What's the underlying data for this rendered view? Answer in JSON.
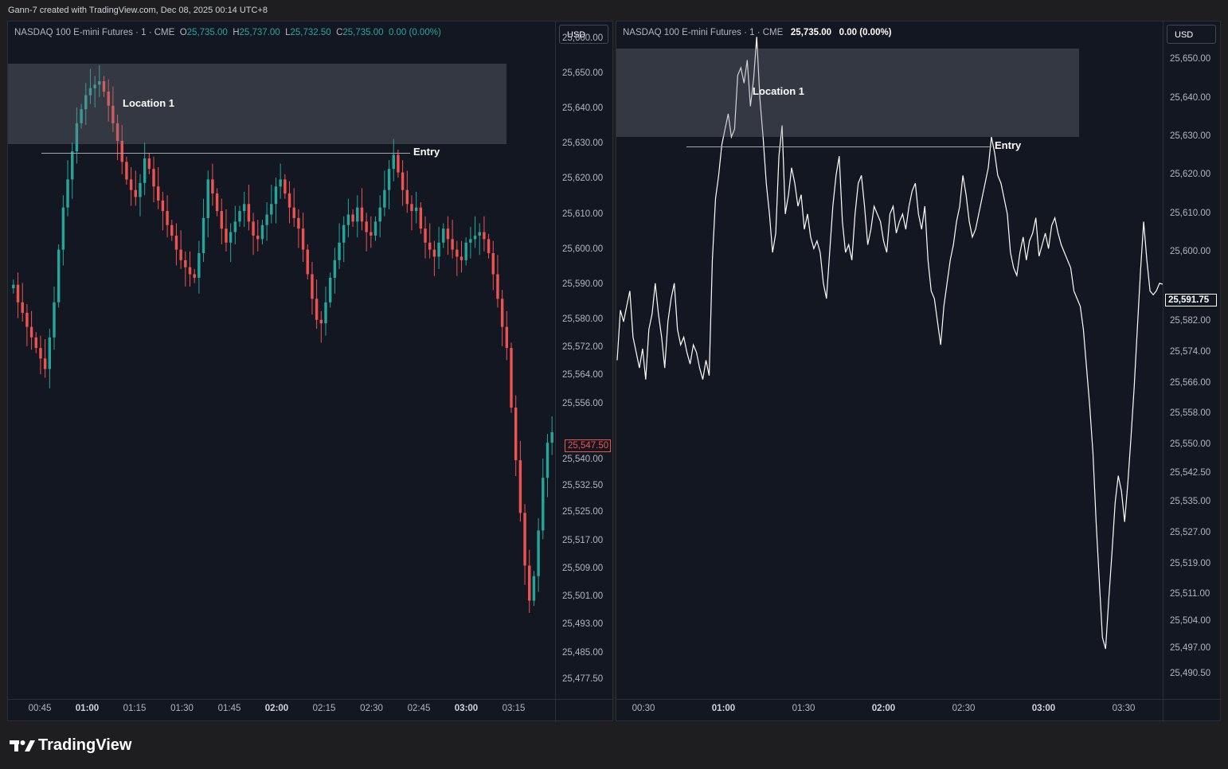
{
  "header": {
    "caption": "Gann-7 created with TradingView.com, Dec 08, 2025 00:14 UTC+8"
  },
  "brand": {
    "name": "TradingView"
  },
  "colors": {
    "bg": "#131722",
    "up": "#26a69a",
    "down": "#ef5350",
    "line": "#ffffff",
    "zone": "#787b86"
  },
  "left_chart": {
    "symbol": "NASDAQ 100 E-mini Futures · 1 · CME",
    "o_label": "O",
    "o_value": "25,735.00",
    "h_label": "H",
    "h_value": "25,737.00",
    "l_label": "L",
    "l_value": "25,732.50",
    "c_label": "C",
    "c_value": "25,735.00",
    "change": "0.00 (0.00%)",
    "currency": "USD",
    "zone_label": "Location 1",
    "entry_label": "Entry",
    "last_price": "25,547.50"
  },
  "right_chart": {
    "symbol": "NASDAQ 100 E-mini Futures · 1 · CME",
    "price": "25,735.00",
    "change": "0.00 (0.00%)",
    "currency": "USD",
    "zone_label": "Location 1",
    "entry_label": "Entry",
    "last_price": "25,591.75"
  },
  "chart_data": [
    {
      "type": "candlestick",
      "y_ticks": [
        "25,660.00",
        "25,650.00",
        "25,640.00",
        "25,630.00",
        "25,620.00",
        "25,610.00",
        "25,600.00",
        "25,590.00",
        "25,580.00",
        "25,572.00",
        "25,564.00",
        "25,556.00",
        "25,547.50",
        "25,540.00",
        "25,532.50",
        "25,525.00",
        "25,517.00",
        "25,509.00",
        "25,501.00",
        "25,493.00",
        "25,485.00",
        "25,477.50"
      ],
      "x_ticks": [
        "00:45",
        "01:00",
        "01:15",
        "01:30",
        "01:45",
        "02:00",
        "02:15",
        "02:30",
        "02:45",
        "03:00",
        "03:15"
      ],
      "x_ticks_bold": [
        "01:00",
        "02:00",
        "03:00"
      ],
      "ylim": [
        25472,
        25665
      ],
      "zone": {
        "label": "Location 1",
        "low": 25630,
        "high": 25653
      },
      "entry": {
        "label": "Entry",
        "price": 25627.5
      },
      "close_series": [
        25590,
        25585,
        25582,
        25578,
        25575,
        25572,
        25569,
        25566,
        25575,
        25585,
        25600,
        25612,
        25620,
        25628,
        25636,
        25640,
        25644,
        25646,
        25647,
        25648,
        25645,
        25641,
        25636,
        25631,
        25625,
        25620,
        25617,
        25615,
        25619,
        25626,
        25623,
        25618,
        25614,
        25611,
        25607,
        25604,
        25600,
        25597,
        25595,
        25593,
        25592,
        25599,
        25609,
        25620,
        25616,
        25611,
        25606,
        25602,
        25605,
        25608,
        25611,
        25613,
        25608,
        25604,
        25603,
        25607,
        25610,
        25613,
        25618,
        25620,
        25616,
        25612,
        25609,
        25606,
        25600,
        25593,
        25586,
        25580,
        25579,
        25585,
        25592,
        25597,
        25602,
        25607,
        25610,
        25608,
        25612,
        25608,
        25605,
        25604,
        25608,
        25612,
        25617,
        25623,
        25627,
        25622,
        25617,
        25613,
        25611,
        25612,
        25606,
        25602,
        25600,
        25598,
        25602,
        25606,
        25603,
        25600,
        25598,
        25597,
        25602,
        25603,
        25604,
        25605,
        25603,
        25599,
        25593,
        25586,
        25578,
        25572,
        25555,
        25540,
        25525,
        25510,
        25500,
        25507,
        25520,
        25535,
        25545,
        25548
      ],
      "last_price": 25547.5
    },
    {
      "type": "line",
      "y_ticks": [
        "25,650.00",
        "25,640.00",
        "25,630.00",
        "25,620.00",
        "25,610.00",
        "25,600.00",
        "25,591.75",
        "25,582.00",
        "25,574.00",
        "25,566.00",
        "25,558.00",
        "25,550.00",
        "25,542.50",
        "25,535.00",
        "25,527.00",
        "25,519.00",
        "25,511.00",
        "25,504.00",
        "25,497.00",
        "25,490.50"
      ],
      "x_ticks": [
        "00:30",
        "01:00",
        "01:30",
        "02:00",
        "02:30",
        "03:00",
        "03:30"
      ],
      "x_ticks_bold": [
        "01:00",
        "02:00",
        "03:00"
      ],
      "ylim": [
        25484,
        25660
      ],
      "zone": {
        "label": "Location 1",
        "low": 25630,
        "high": 25653
      },
      "entry": {
        "label": "Entry",
        "price": 25627.5
      },
      "values": [
        25572,
        25585,
        25582,
        25586,
        25590,
        25578,
        25574,
        25570,
        25575,
        25567,
        25580,
        25584,
        25592,
        25584,
        25578,
        25570,
        25582,
        25588,
        25592,
        25580,
        25576,
        25578,
        25574,
        25571,
        25576,
        25574,
        25570,
        25567,
        25572,
        25568,
        25598,
        25614,
        25620,
        25628,
        25632,
        25636,
        25630,
        25632,
        25646,
        25648,
        25644,
        25650,
        25638,
        25645,
        25656,
        25640,
        25630,
        25618,
        25610,
        25600,
        25605,
        25625,
        25633,
        25610,
        25615,
        25622,
        25618,
        25612,
        25615,
        25606,
        25610,
        25604,
        25601,
        25603,
        25600,
        25592,
        25588,
        25600,
        25612,
        25620,
        25625,
        25608,
        25600,
        25602,
        25598,
        25610,
        25618,
        25620,
        25612,
        25602,
        25606,
        25612,
        25610,
        25608,
        25603,
        25600,
        25610,
        25612,
        25605,
        25608,
        25610,
        25606,
        25612,
        25616,
        25618,
        25610,
        25606,
        25612,
        25598,
        25590,
        25588,
        25582,
        25576,
        25586,
        25592,
        25598,
        25602,
        25608,
        25612,
        25620,
        25615,
        25608,
        25604,
        25606,
        25610,
        25614,
        25618,
        25622,
        25630,
        25626,
        25620,
        25618,
        25614,
        25610,
        25600,
        25596,
        25594,
        25600,
        25604,
        25598,
        25603,
        25605,
        25609,
        25599,
        25602,
        25605,
        25601,
        25607,
        25609,
        25605,
        25602,
        25600,
        25598,
        25596,
        25590,
        25588,
        25586,
        25580,
        25570,
        25560,
        25548,
        25530,
        25515,
        25500,
        25497,
        25510,
        25522,
        25535,
        25542,
        25538,
        25530,
        25540,
        25552,
        25565,
        25580,
        25595,
        25608,
        25598,
        25590,
        25589,
        25590,
        25592,
        25591.75
      ],
      "last_price": 25591.75
    }
  ]
}
